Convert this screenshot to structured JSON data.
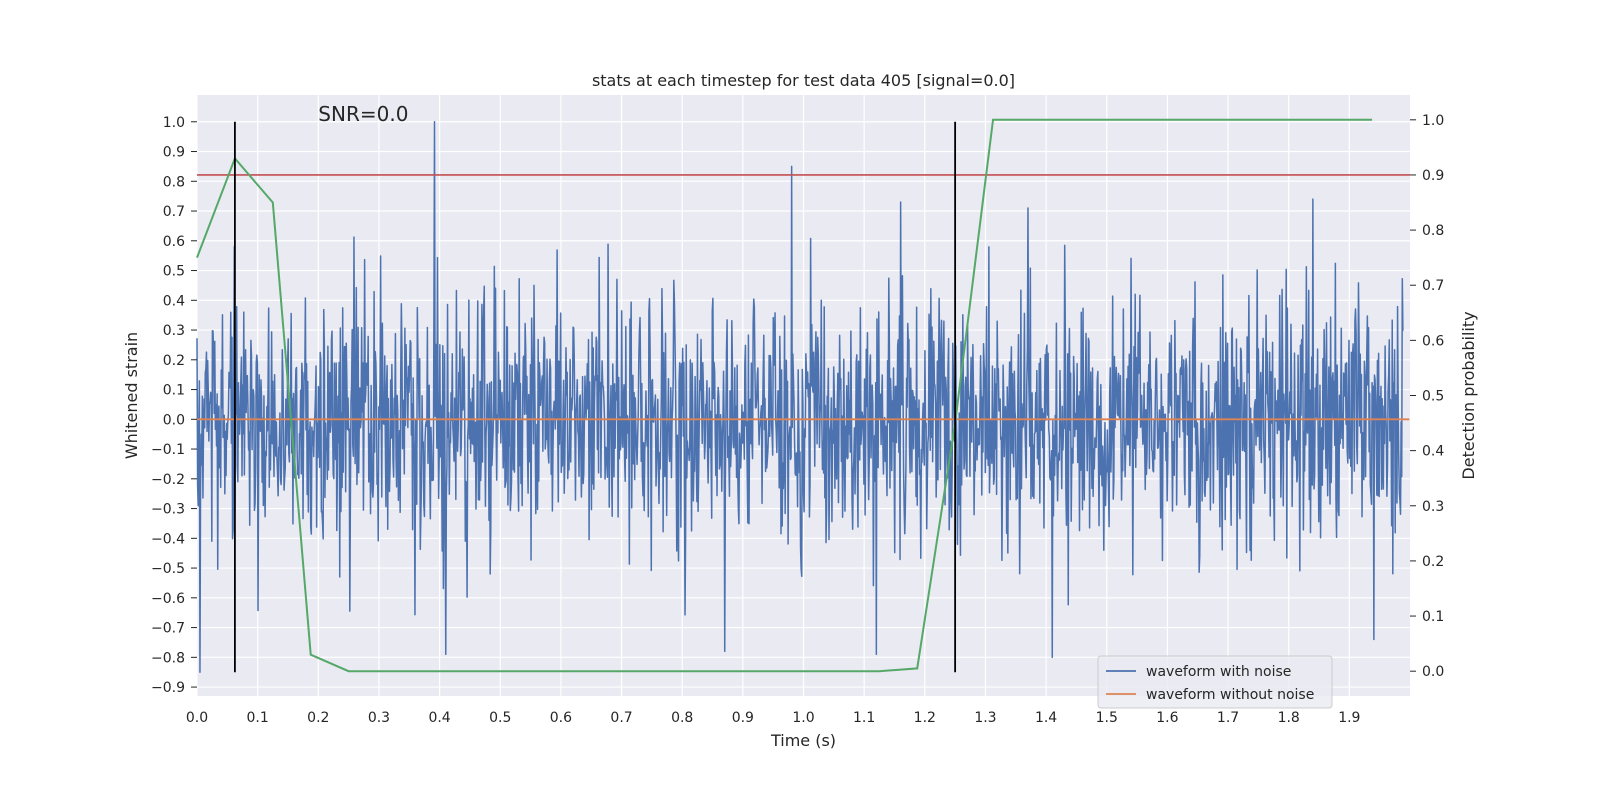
{
  "chart_data": {
    "type": "line",
    "title": "stats at each timestep for test data 405 [signal=0.0]",
    "xlabel": "Time (s)",
    "ylabel": "Whitened strain",
    "y2label": "Detection probability",
    "xlim": [
      0.0,
      2.0
    ],
    "ylim": [
      -0.93,
      1.09
    ],
    "y2lim": [
      -0.045,
      1.045
    ],
    "x_ticks": [
      0.0,
      0.1,
      0.2,
      0.3,
      0.4,
      0.5,
      0.6,
      0.7,
      0.8,
      0.9,
      1.0,
      1.1,
      1.2,
      1.3,
      1.4,
      1.5,
      1.6,
      1.7,
      1.8,
      1.9
    ],
    "x_tick_labels": [
      "0.0",
      "0.1",
      "0.2",
      "0.3",
      "0.4",
      "0.5",
      "0.6",
      "0.7",
      "0.8",
      "0.9",
      "1.0",
      "1.1",
      "1.2",
      "1.3",
      "1.4",
      "1.5",
      "1.6",
      "1.7",
      "1.8",
      "1.9"
    ],
    "y_ticks": [
      -0.9,
      -0.8,
      -0.7,
      -0.6,
      -0.5,
      -0.4,
      -0.3,
      -0.2,
      -0.1,
      0.0,
      0.1,
      0.2,
      0.3,
      0.4,
      0.5,
      0.6,
      0.7,
      0.8,
      0.9,
      1.0
    ],
    "y_tick_labels": [
      "−0.9",
      "−0.8",
      "−0.7",
      "−0.6",
      "−0.5",
      "−0.4",
      "−0.3",
      "−0.2",
      "−0.1",
      "0.0",
      "0.1",
      "0.2",
      "0.3",
      "0.4",
      "0.5",
      "0.6",
      "0.7",
      "0.8",
      "0.9",
      "1.0"
    ],
    "y2_ticks": [
      0.0,
      0.1,
      0.2,
      0.3,
      0.4,
      0.5,
      0.6,
      0.7,
      0.8,
      0.9,
      1.0
    ],
    "y2_tick_labels": [
      "0.0",
      "0.1",
      "0.2",
      "0.3",
      "0.4",
      "0.5",
      "0.6",
      "0.7",
      "0.8",
      "0.9",
      "1.0"
    ],
    "annotation": "SNR=0.0",
    "annotation_x": 0.2,
    "annotation_y": 1.0,
    "vertical_markers": [
      {
        "x": 0.0625,
        "y_from": -0.85,
        "y_to": 1.0,
        "color": "#000000"
      },
      {
        "x": 1.25,
        "y_from": -0.85,
        "y_to": 1.0,
        "color": "#000000"
      }
    ],
    "threshold": {
      "y2": 0.9,
      "color": "#c44e52"
    },
    "series": [
      {
        "name": "waveform with noise",
        "color": "#4c72b0",
        "axis": "left",
        "sample_rate": 1024,
        "duration": 1.99,
        "seed": 405,
        "spikes": [
          {
            "x": 0.005,
            "y": -0.85
          },
          {
            "x": 0.062,
            "y": 0.58
          },
          {
            "x": 0.392,
            "y": 1.0
          },
          {
            "x": 0.41,
            "y": -0.79
          },
          {
            "x": 0.98,
            "y": 0.85
          },
          {
            "x": 0.87,
            "y": -0.78
          },
          {
            "x": 1.12,
            "y": -0.79
          },
          {
            "x": 1.16,
            "y": 0.73
          },
          {
            "x": 1.41,
            "y": -0.8
          },
          {
            "x": 1.94,
            "y": -0.74
          },
          {
            "x": 1.37,
            "y": 0.71
          },
          {
            "x": 1.84,
            "y": 0.74
          }
        ]
      },
      {
        "name": "waveform without noise",
        "color": "#dd8452",
        "axis": "left",
        "x": [
          0.0,
          1.999
        ],
        "y": [
          0.0,
          0.0
        ]
      },
      {
        "name": "detection probability",
        "color": "#55a868",
        "axis": "right",
        "x": [
          0.0,
          0.0625,
          0.125,
          0.1875,
          0.25,
          0.3125,
          0.375,
          0.4375,
          0.5,
          0.5625,
          0.625,
          0.6875,
          0.75,
          0.8125,
          0.875,
          0.9375,
          1.0,
          1.0625,
          1.125,
          1.1875,
          1.25,
          1.3125,
          1.375,
          1.4375,
          1.5,
          1.5625,
          1.625,
          1.6875,
          1.75,
          1.8125,
          1.875,
          1.9375
        ],
        "y": [
          0.75,
          0.93,
          0.85,
          0.03,
          0.0,
          0.0,
          0.0,
          0.0,
          0.0,
          0.0,
          0.0,
          0.0,
          0.0,
          0.0,
          0.0,
          0.0,
          0.0,
          0.0,
          0.0,
          0.005,
          0.45,
          1.0,
          1.0,
          1.0,
          1.0,
          1.0,
          1.0,
          1.0,
          1.0,
          1.0,
          1.0,
          1.0
        ]
      }
    ],
    "legend": {
      "placement": "lower-right",
      "entries": [
        {
          "label": "waveform with noise",
          "color": "#4c72b0"
        },
        {
          "label": "waveform without noise",
          "color": "#dd8452"
        }
      ]
    },
    "grid": true
  }
}
